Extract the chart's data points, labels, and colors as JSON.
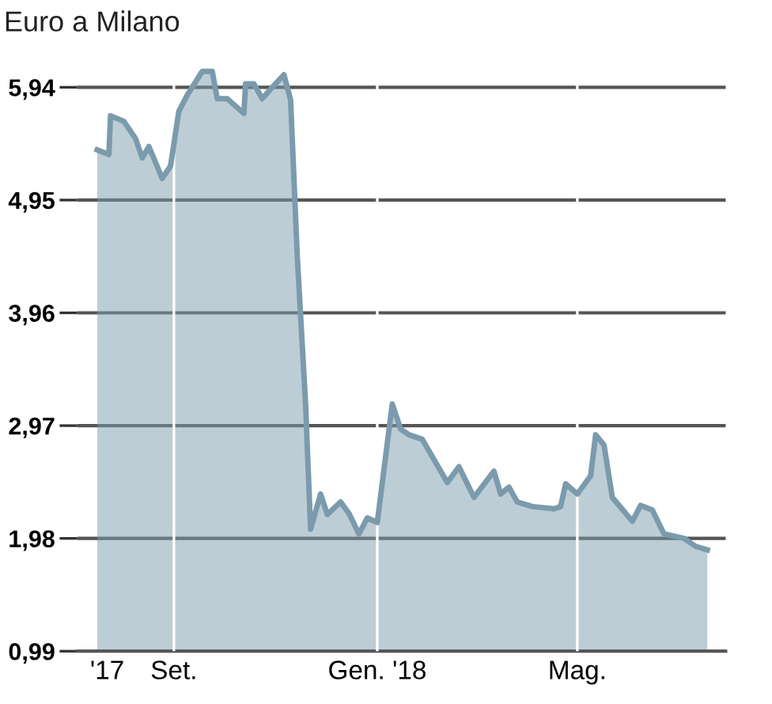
{
  "chart_data": {
    "type": "area",
    "title": "Euro a Milano",
    "x": [
      "2017-07-17",
      "2017-07-24",
      "2017-07-25",
      "2017-08-02",
      "2017-08-09",
      "2017-08-13",
      "2017-08-17",
      "2017-08-25",
      "2017-08-30",
      "2017-09-04",
      "2017-09-09",
      "2017-09-18",
      "2017-09-24",
      "2017-09-27",
      "2017-10-03",
      "2017-10-13",
      "2017-10-14",
      "2017-10-19",
      "2017-10-24",
      "2017-10-30",
      "2017-11-06",
      "2017-11-10",
      "2017-11-14",
      "2017-11-19",
      "2017-11-22",
      "2017-11-28",
      "2017-12-02",
      "2017-12-10",
      "2017-12-15",
      "2017-12-21",
      "2017-12-26",
      "2018-01-01",
      "2018-01-10",
      "2018-01-15",
      "2018-01-20",
      "2018-01-28",
      "2018-02-12",
      "2018-02-19",
      "2018-02-28",
      "2018-03-12",
      "2018-03-16",
      "2018-03-21",
      "2018-03-26",
      "2018-04-04",
      "2018-04-17",
      "2018-04-21",
      "2018-04-24",
      "2018-05-01",
      "2018-05-09",
      "2018-05-12",
      "2018-05-17",
      "2018-05-22",
      "2018-06-03",
      "2018-06-08",
      "2018-06-15",
      "2018-06-22",
      "2018-07-04",
      "2018-07-11",
      "2018-07-18"
    ],
    "series": [
      {
        "color": "#7b9bad",
        "values": [
          5.39,
          5.35,
          5.69,
          5.64,
          5.49,
          5.32,
          5.42,
          5.14,
          5.25,
          5.73,
          5.87,
          6.08,
          6.08,
          5.84,
          5.84,
          5.71,
          5.97,
          5.97,
          5.84,
          5.94,
          6.05,
          5.83,
          4.46,
          3.16,
          2.06,
          2.37,
          2.19,
          2.3,
          2.2,
          2.02,
          2.16,
          2.12,
          3.16,
          2.94,
          2.89,
          2.85,
          2.47,
          2.61,
          2.34,
          2.57,
          2.37,
          2.43,
          2.3,
          2.26,
          2.24,
          2.26,
          2.46,
          2.37,
          2.53,
          2.89,
          2.8,
          2.34,
          2.13,
          2.27,
          2.23,
          2.02,
          1.98,
          1.91,
          1.88
        ]
      }
    ],
    "xlim": [
      "2017-07-05",
      "2018-07-29"
    ],
    "xticks": [
      {
        "value": "2017-07-23",
        "label": "'17"
      },
      {
        "value": "2017-09-01",
        "label": "Set."
      },
      {
        "value": "2018-01-01",
        "label": "Gen. '18"
      },
      {
        "value": "2018-05-01",
        "label": "Mag."
      }
    ],
    "ylim": [
      0.99,
      6.15
    ],
    "yticks": [
      {
        "value": 0.99,
        "label": "0,99"
      },
      {
        "value": 1.98,
        "label": "1,98"
      },
      {
        "value": 2.97,
        "label": "2,97"
      },
      {
        "value": 3.96,
        "label": "3,96"
      },
      {
        "value": 4.95,
        "label": "4,95"
      },
      {
        "value": 5.94,
        "label": "5,94"
      }
    ],
    "grid": true,
    "legend": false
  }
}
